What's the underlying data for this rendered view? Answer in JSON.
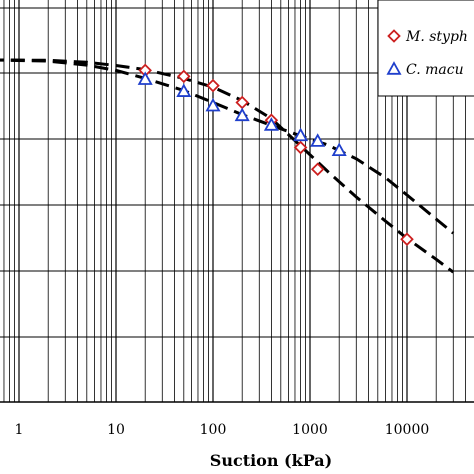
{
  "chart_data": {
    "type": "scatter",
    "title": "",
    "xlabel": "Suction (kPa)",
    "ylabel": "",
    "xscale": "log",
    "xlim": [
      0.5,
      15000
    ],
    "ylim": [
      0,
      1
    ],
    "x_tick_labels": [
      "1",
      "10",
      "100",
      "1000",
      "10000",
      "1"
    ],
    "grid": true,
    "legend_position": "top-right",
    "series": [
      {
        "name": "M. styph",
        "marker": "diamond",
        "color": "#cc1f1f",
        "points": [
          {
            "x": 20,
            "y": 0.82
          },
          {
            "x": 50,
            "y": 0.805
          },
          {
            "x": 100,
            "y": 0.782
          },
          {
            "x": 200,
            "y": 0.74
          },
          {
            "x": 400,
            "y": 0.696
          },
          {
            "x": 800,
            "y": 0.628
          },
          {
            "x": 1200,
            "y": 0.574
          },
          {
            "x": 10000,
            "y": 0.4
          }
        ]
      },
      {
        "name": "C. macu",
        "marker": "triangle",
        "color": "#1f3fcc",
        "points": [
          {
            "x": 20,
            "y": 0.798
          },
          {
            "x": 50,
            "y": 0.768
          },
          {
            "x": 100,
            "y": 0.732
          },
          {
            "x": 200,
            "y": 0.708
          },
          {
            "x": 400,
            "y": 0.684
          },
          {
            "x": 800,
            "y": 0.658
          },
          {
            "x": 1200,
            "y": 0.644
          },
          {
            "x": 2000,
            "y": 0.621
          }
        ]
      }
    ],
    "fit_curves": [
      {
        "style": "dashed",
        "points": [
          {
            "x": 0.5,
            "y": 0.846
          },
          {
            "x": 2,
            "y": 0.845
          },
          {
            "x": 5,
            "y": 0.84
          },
          {
            "x": 10,
            "y": 0.832
          },
          {
            "x": 20,
            "y": 0.822
          },
          {
            "x": 50,
            "y": 0.8
          },
          {
            "x": 100,
            "y": 0.778
          },
          {
            "x": 200,
            "y": 0.745
          },
          {
            "x": 400,
            "y": 0.7
          },
          {
            "x": 800,
            "y": 0.632
          },
          {
            "x": 1500,
            "y": 0.57
          },
          {
            "x": 3000,
            "y": 0.505
          },
          {
            "x": 6000,
            "y": 0.445
          },
          {
            "x": 10000,
            "y": 0.402
          },
          {
            "x": 20000,
            "y": 0.35
          },
          {
            "x": 30000,
            "y": 0.318
          }
        ]
      },
      {
        "style": "dashed",
        "points": [
          {
            "x": 0.5,
            "y": 0.846
          },
          {
            "x": 2,
            "y": 0.843
          },
          {
            "x": 5,
            "y": 0.833
          },
          {
            "x": 10,
            "y": 0.82
          },
          {
            "x": 20,
            "y": 0.8
          },
          {
            "x": 50,
            "y": 0.77
          },
          {
            "x": 100,
            "y": 0.74
          },
          {
            "x": 200,
            "y": 0.71
          },
          {
            "x": 400,
            "y": 0.683
          },
          {
            "x": 800,
            "y": 0.657
          },
          {
            "x": 1500,
            "y": 0.635
          },
          {
            "x": 3000,
            "y": 0.6
          },
          {
            "x": 6000,
            "y": 0.553
          },
          {
            "x": 10000,
            "y": 0.51
          },
          {
            "x": 20000,
            "y": 0.45
          },
          {
            "x": 30000,
            "y": 0.415
          }
        ]
      }
    ]
  }
}
